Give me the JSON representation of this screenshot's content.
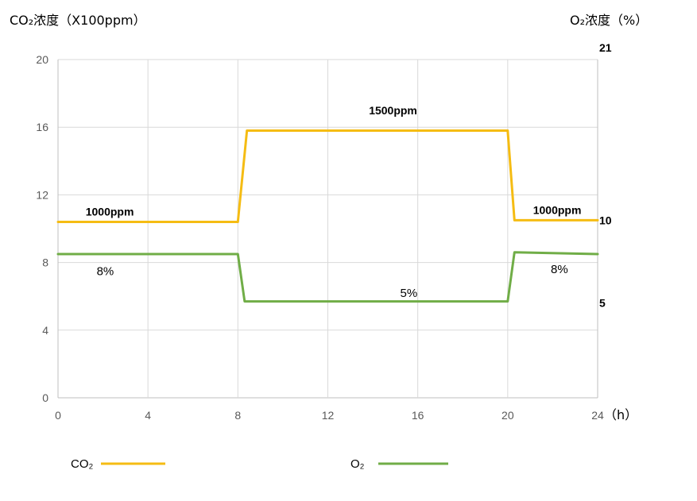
{
  "chart_data": {
    "type": "line",
    "y_axis_title": "CO₂浓度（X100ppm）",
    "y2_axis_title": "O₂浓度（%）",
    "x_unit_label": "（h）",
    "x_ticks": [
      0,
      4,
      8,
      12,
      16,
      20,
      24
    ],
    "y_ticks": [
      0,
      4,
      8,
      12,
      16,
      20
    ],
    "y2_tick_labels": [
      {
        "label": "21",
        "at_left_axis_value": 20.7
      },
      {
        "label": "10",
        "at_left_axis_value": 10.5
      },
      {
        "label": "5",
        "at_left_axis_value": 5.6
      }
    ],
    "xlim": [
      0,
      24
    ],
    "ylim": [
      0,
      20
    ],
    "grid": true,
    "legend_position": "bottom",
    "series": [
      {
        "name": "CO₂",
        "axis": "left",
        "color": "#f5bc13",
        "x": [
          0,
          8,
          8.4,
          20,
          20.3,
          24
        ],
        "y": [
          10.4,
          10.4,
          15.8,
          15.8,
          10.5,
          10.5
        ]
      },
      {
        "name": "O₂",
        "axis": "right",
        "color": "#70ad47",
        "x": [
          0,
          8,
          8.3,
          20,
          20.3,
          24
        ],
        "y": [
          8.5,
          8.5,
          5.7,
          5.7,
          8.6,
          8.5
        ]
      }
    ],
    "annotations": [
      {
        "text": "1000ppm",
        "style": "bold",
        "x": 2.3,
        "y": 11.0
      },
      {
        "text": "1500ppm",
        "style": "bold",
        "x": 14.9,
        "y": 17.0
      },
      {
        "text": "1000ppm",
        "style": "bold",
        "x": 22.2,
        "y": 11.1
      },
      {
        "text": "8%",
        "style": "normal",
        "x": 2.1,
        "y": 7.5
      },
      {
        "text": "5%",
        "style": "normal",
        "x": 15.6,
        "y": 6.2
      },
      {
        "text": "8%",
        "style": "normal",
        "x": 22.3,
        "y": 7.6
      }
    ]
  }
}
